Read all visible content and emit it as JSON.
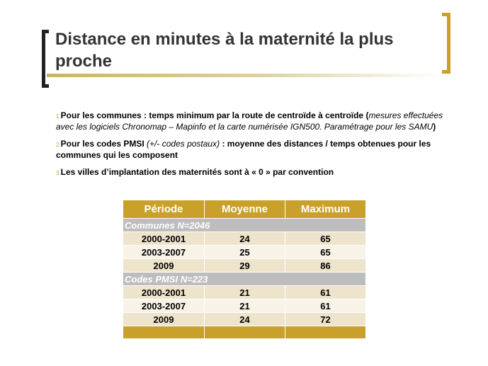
{
  "slide": {
    "title": "Distance en minutes à la maternité la plus proche"
  },
  "bullets": [
    {
      "number": "1.",
      "bold": "Pour les communes : temps minimum par la route de centroïde à centroïde (",
      "italic": "mesures effectuées  avec les logiciels Chronomap – Mapinfo et la carte numérisée IGN500. Paramétrage pour les SAMU",
      "tail": ")"
    },
    {
      "number": "2.",
      "bold": "Pour les codes PMSI ",
      "italic": "(+/- codes postaux)",
      "tail": " :  moyenne des distances / temps obtenues pour les communes qui les composent"
    },
    {
      "number": "3.",
      "bold": "Les villes d’implantation des maternités sont à « 0  » par convention",
      "italic": "",
      "tail": ""
    }
  ],
  "table": {
    "headers": [
      "Période",
      "Moyenne",
      "Maximum"
    ],
    "sections": [
      {
        "label": "Communes N=2046",
        "rows": [
          [
            "2000-2001",
            "24",
            "65"
          ],
          [
            "2003-2007",
            "25",
            "65"
          ],
          [
            "2009",
            "29",
            "86"
          ]
        ]
      },
      {
        "label": "Codes PMSI N=223",
        "rows": [
          [
            "2000-2001",
            "21",
            "61"
          ],
          [
            "2003-2007",
            "21",
            "61"
          ],
          [
            "2009",
            "24",
            "72"
          ]
        ]
      }
    ]
  },
  "colors": {
    "accent": "#c8a02a",
    "section_bg": "#bdbdbd",
    "row_light": "#f8f3e6",
    "row_dark": "#eee4cc",
    "title": "#333333"
  }
}
